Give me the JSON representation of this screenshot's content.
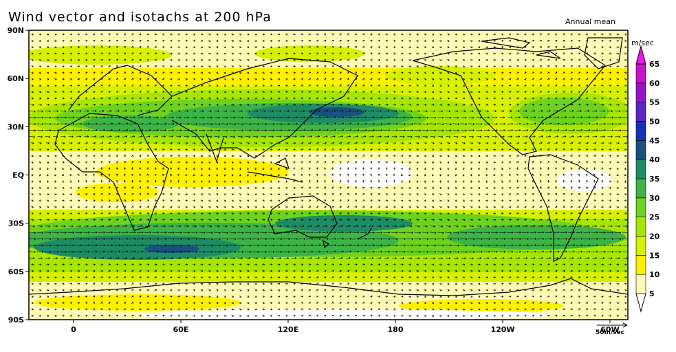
{
  "title": "Wind vector and isotachs at 200 hPa",
  "subtitle": "Annual mean",
  "unit": "m/sec",
  "lat_labels": [
    {
      "text": "90N",
      "lat": 90
    },
    {
      "text": "60N",
      "lat": 60
    },
    {
      "text": "30N",
      "lat": 30
    },
    {
      "text": "EQ",
      "lat": 0
    },
    {
      "text": "30S",
      "lat": -30
    },
    {
      "text": "60S",
      "lat": -60
    },
    {
      "text": "90S",
      "lat": -90
    }
  ],
  "lon_labels": [
    {
      "text": "0",
      "lon": 0
    },
    {
      "text": "60E",
      "lon": 60
    },
    {
      "text": "120E",
      "lon": 120
    },
    {
      "text": "180",
      "lon": 180
    },
    {
      "text": "120W",
      "lon": 240
    },
    {
      "text": "60W",
      "lon": 300
    }
  ],
  "reference_vector": "50m/sec",
  "colorbar": {
    "levels": [
      "5",
      "10",
      "15",
      "20",
      "25",
      "30",
      "35",
      "40",
      "45",
      "50",
      "55",
      "60",
      "65"
    ],
    "colors": [
      "#ffffff",
      "#fffab4",
      "#fff000",
      "#d7f000",
      "#a6e600",
      "#6ed21e",
      "#3cb446",
      "#1e8c64",
      "#19507d",
      "#1432b4",
      "#5a28c8",
      "#9614c8",
      "#c814c8",
      "#f014f0"
    ]
  }
}
